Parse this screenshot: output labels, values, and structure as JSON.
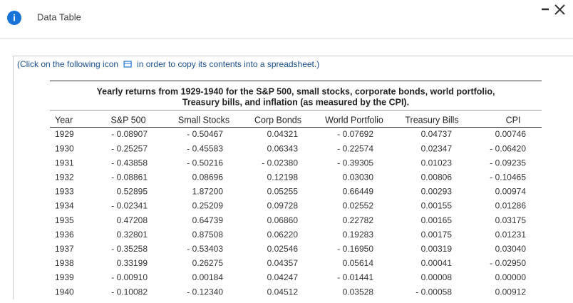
{
  "header": {
    "title": "Data Table"
  },
  "note": {
    "before": "(Click on the following icon",
    "after": "in order to copy its contents into a spreadsheet.)"
  },
  "table": {
    "caption": [
      "Yearly returns from 1929-1940 for the S&P 500, small stocks, corporate bonds, world portfolio,",
      "Treasury bills, and inflation (as measured by the CPI)."
    ],
    "columns": [
      "Year",
      "S&P 500",
      "Small Stocks",
      "Corp Bonds",
      "World Portfolio",
      "Treasury Bills",
      "CPI"
    ],
    "rows": [
      [
        "1929",
        "- 0.08907",
        "- 0.50467",
        "0.04321",
        "- 0.07692",
        "0.04737",
        "0.00746"
      ],
      [
        "1930",
        "- 0.25257",
        "- 0.45583",
        "0.06343",
        "- 0.22574",
        "0.02347",
        "- 0.06420"
      ],
      [
        "1931",
        "- 0.43858",
        "- 0.50216",
        "- 0.02380",
        "- 0.39305",
        "0.01023",
        "- 0.09235"
      ],
      [
        "1932",
        "- 0.08861",
        "0.08696",
        "0.12198",
        "0.03030",
        "0.00806",
        "- 0.10465"
      ],
      [
        "1933",
        "0.52895",
        "1.87200",
        "0.05255",
        "0.66449",
        "0.00293",
        "0.00974"
      ],
      [
        "1934",
        "- 0.02341",
        "0.25209",
        "0.09728",
        "0.02552",
        "0.00155",
        "0.01286"
      ],
      [
        "1935",
        "0.47208",
        "0.64739",
        "0.06860",
        "0.22782",
        "0.00165",
        "0.03175"
      ],
      [
        "1936",
        "0.32801",
        "0.87508",
        "0.06220",
        "0.19283",
        "0.00175",
        "0.01231"
      ],
      [
        "1937",
        "- 0.35258",
        "- 0.53403",
        "0.02546",
        "- 0.16950",
        "0.00319",
        "0.03040"
      ],
      [
        "1938",
        "0.33199",
        "0.26275",
        "0.04357",
        "0.05614",
        "0.00041",
        "- 0.02950"
      ],
      [
        "1939",
        "- 0.00910",
        "0.00184",
        "0.04247",
        "- 0.01441",
        "0.00008",
        "0.00000"
      ],
      [
        "1940",
        "- 0.10082",
        "- 0.12340",
        "0.04512",
        "0.03528",
        "- 0.00058",
        "0.00912"
      ]
    ]
  }
}
